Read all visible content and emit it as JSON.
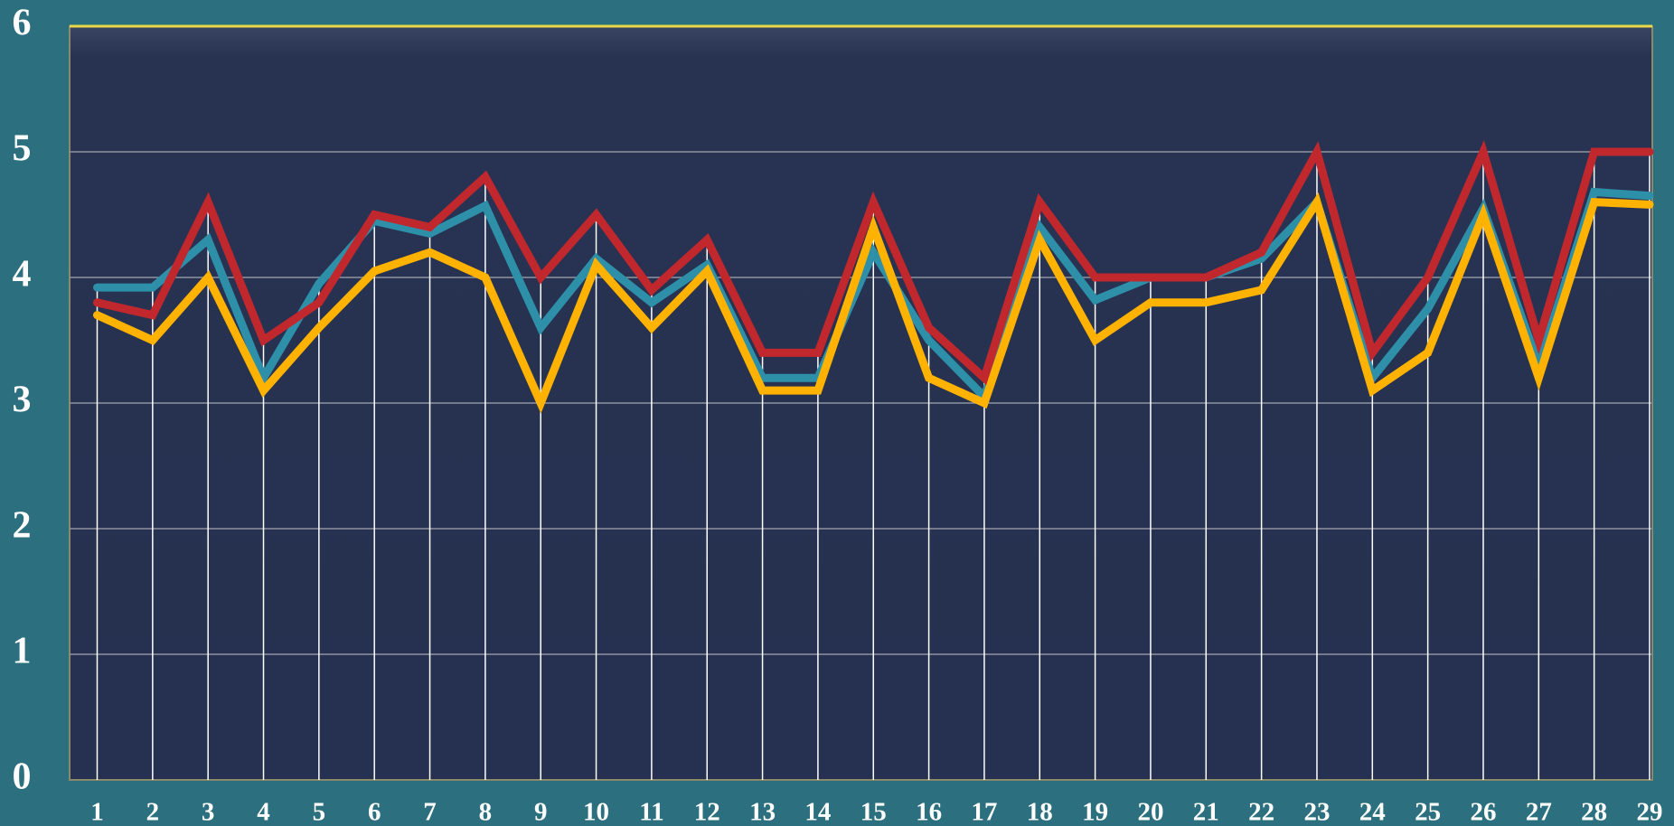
{
  "chart_data": {
    "type": "line",
    "categories": [
      1,
      2,
      3,
      4,
      5,
      6,
      7,
      8,
      9,
      10,
      11,
      12,
      13,
      14,
      15,
      16,
      17,
      18,
      19,
      20,
      21,
      22,
      23,
      24,
      25,
      26,
      27,
      28,
      29
    ],
    "series": [
      {
        "color": "#2e8fa8",
        "values": [
          3.92,
          3.92,
          4.3,
          3.2,
          3.95,
          4.45,
          4.35,
          4.57,
          3.6,
          4.15,
          3.8,
          4.1,
          3.2,
          3.2,
          4.2,
          3.5,
          3.05,
          4.4,
          3.82,
          4.0,
          4.0,
          4.15,
          4.6,
          3.2,
          3.75,
          4.55,
          3.3,
          4.68,
          4.65
        ]
      },
      {
        "color": "#ffb300",
        "values": [
          3.7,
          3.5,
          4.0,
          3.1,
          3.6,
          4.05,
          4.2,
          4.0,
          3.0,
          4.1,
          3.6,
          4.05,
          3.1,
          3.1,
          4.4,
          3.2,
          3.0,
          4.3,
          3.5,
          3.8,
          3.8,
          3.9,
          4.6,
          3.1,
          3.4,
          4.5,
          3.2,
          4.6,
          4.58
        ]
      },
      {
        "color": "#c0282d",
        "values": [
          3.8,
          3.7,
          4.6,
          3.5,
          3.8,
          4.5,
          4.4,
          4.8,
          4.0,
          4.5,
          3.9,
          4.3,
          3.4,
          3.4,
          4.6,
          3.6,
          3.2,
          4.6,
          4.0,
          4.0,
          4.0,
          4.2,
          5.0,
          3.4,
          4.0,
          5.0,
          3.5,
          5.0,
          5.0
        ]
      }
    ],
    "ylim": [
      0,
      6
    ],
    "yticks": [
      0,
      1,
      2,
      3,
      4,
      5,
      6
    ],
    "grid": true
  }
}
